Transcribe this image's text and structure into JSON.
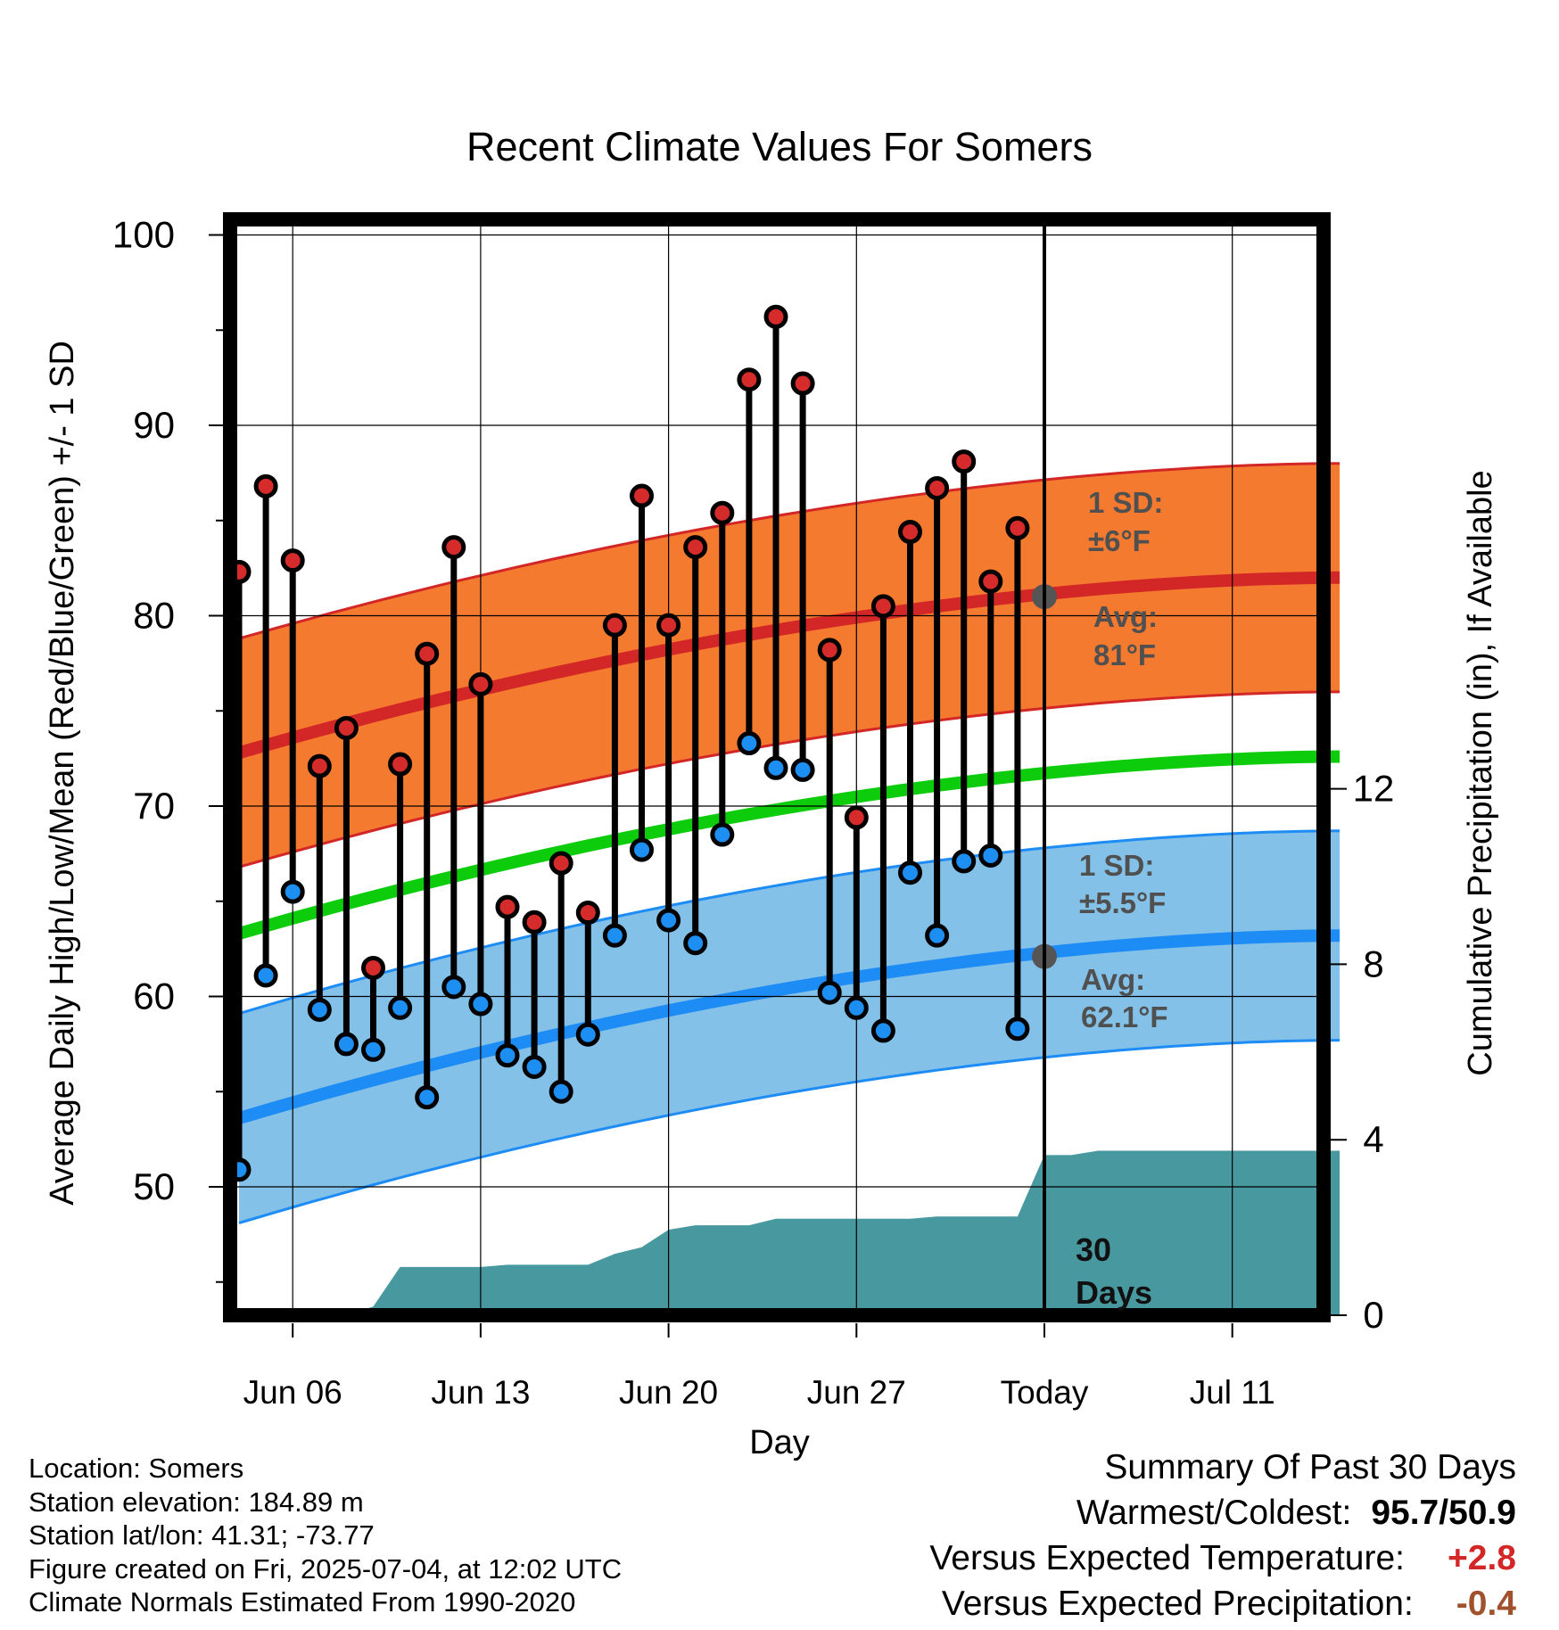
{
  "chart_data": {
    "type": "line",
    "title": "Recent Climate Values For Somers",
    "xlabel": "Day",
    "ylabel": "Average Daily High/Low/Mean (Red/Blue/Green) +/- 1 SD",
    "ylabel_right": "Cumulative Precipitation (in), If Available",
    "ylim": [
      43,
      101
    ],
    "ylim_right": [
      0,
      24.6
    ],
    "y_ticks": [
      "100",
      "90",
      "80",
      "70",
      "60",
      "50"
    ],
    "y_right_ticks": [
      "0",
      "4",
      "8",
      "12"
    ],
    "x_ticks": [
      "Jun 06",
      "Jun 13",
      "Jun 20",
      "Jun 27",
      "Today",
      "Jul 11"
    ],
    "dates": [
      "Jun 04",
      "Jun 05",
      "Jun 06",
      "Jun 07",
      "Jun 08",
      "Jun 09",
      "Jun 10",
      "Jun 11",
      "Jun 12",
      "Jun 13",
      "Jun 14",
      "Jun 15",
      "Jun 16",
      "Jun 17",
      "Jun 18",
      "Jun 19",
      "Jun 20",
      "Jun 21",
      "Jun 22",
      "Jun 23",
      "Jun 24",
      "Jun 25",
      "Jun 26",
      "Jun 27",
      "Jun 28",
      "Jun 29",
      "Jun 30",
      "Jul 01",
      "Jul 02",
      "Jul 03"
    ],
    "daily_high": [
      82.3,
      86.8,
      82.9,
      72.1,
      74.1,
      61.5,
      72.2,
      78.0,
      83.6,
      76.4,
      64.7,
      63.9,
      67.0,
      64.4,
      79.5,
      86.3,
      79.5,
      83.6,
      85.4,
      92.4,
      95.7,
      92.2,
      78.2,
      69.4,
      80.5,
      84.4,
      86.7,
      88.1,
      81.8,
      84.6
    ],
    "daily_low": [
      50.9,
      61.1,
      65.5,
      59.3,
      57.5,
      57.2,
      59.4,
      54.7,
      60.5,
      59.6,
      56.9,
      56.3,
      55.0,
      58.0,
      63.2,
      67.7,
      64.0,
      62.8,
      68.5,
      73.3,
      72.0,
      71.9,
      60.2,
      59.4,
      58.2,
      66.5,
      63.2,
      67.1,
      67.4,
      58.3
    ],
    "normal_days": [
      0,
      41
    ],
    "normal_high": {
      "start": 72.8,
      "end": 82.0
    },
    "normal_high_sd": 6.0,
    "normal_low": {
      "start": 53.6,
      "end": 63.2
    },
    "normal_low_sd": 5.5,
    "normal_mean": {
      "start": 63.3,
      "end": 72.6
    },
    "today_high_avg": 81,
    "today_low_avg": 62.1,
    "cumulative_precip": {
      "x": [
        0,
        4,
        5,
        6,
        7,
        8,
        9,
        10,
        11,
        12,
        13,
        14,
        15,
        16,
        17,
        18,
        19,
        20,
        21,
        22,
        23,
        24,
        25,
        26,
        27,
        28,
        29,
        30,
        31,
        32,
        41
      ],
      "y": [
        0,
        0,
        0.2,
        1.1,
        1.1,
        1.1,
        1.1,
        1.15,
        1.15,
        1.15,
        1.15,
        1.4,
        1.55,
        1.95,
        2.05,
        2.05,
        2.05,
        2.2,
        2.2,
        2.2,
        2.2,
        2.2,
        2.2,
        2.25,
        2.25,
        2.25,
        2.25,
        3.65,
        3.65,
        3.75,
        3.75
      ]
    },
    "band_labels": {
      "high_sd": "1 SD:",
      "high_sd_value": "±6°F",
      "high_avg": "Avg:",
      "high_avg_value": "81°F",
      "low_sd": "1 SD:",
      "low_sd_value": "±5.5°F",
      "low_avg": "Avg:",
      "low_avg_value": "62.1°F"
    },
    "days_label_line1": "30",
    "days_label_line2": "Days",
    "grid": true,
    "colors": {
      "high_band": "#f47a2f",
      "high_line": "#d32626",
      "low_band": "#84c1e8",
      "low_line": "#1e8cf5",
      "mean_line": "#0ccc0c",
      "precip": "#48999f",
      "high_dot": "#d52b2b",
      "low_dot": "#1d8ef2",
      "label_gray": "#505050"
    }
  },
  "footer": {
    "location": "Location: Somers",
    "elevation": "Station elevation: 184.89 m",
    "latlon": "Station lat/lon: 41.31; -73.77",
    "created": "Figure created on Fri, 2025-07-04, at 12:02 UTC",
    "normals": "Climate Normals Estimated From 1990-2020"
  },
  "summary": {
    "title": "Summary Of Past 30 Days",
    "warm_cold_label": "Warmest/Coldest:",
    "warm_cold_value": "95.7/50.9",
    "temp_label": "Versus Expected Temperature:",
    "temp_value": "+2.8",
    "temp_color": "#d32626",
    "precip_label": "Versus Expected Precipitation:",
    "precip_value": "-0.4",
    "precip_color": "#a0522d"
  }
}
